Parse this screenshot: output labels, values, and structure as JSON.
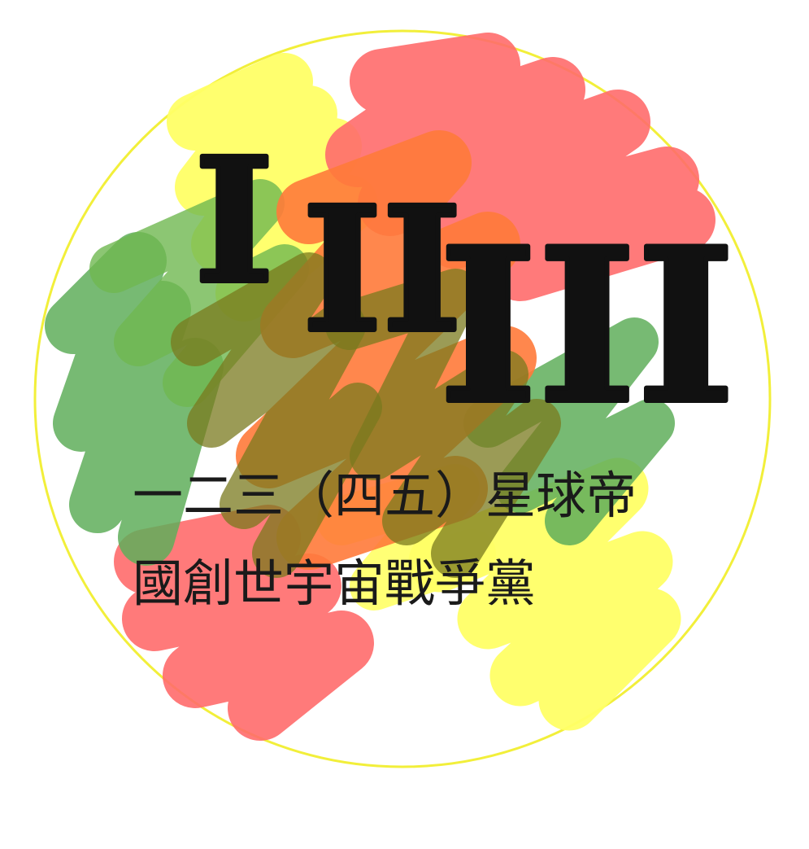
{
  "emblem": {
    "numerals": {
      "one": "I",
      "two": "II",
      "three": "III"
    },
    "caption": {
      "line1": "一二三（四五）星球帝",
      "line2": "國創世宇宙戰爭黨"
    }
  },
  "colors": {
    "ring": "#f2ef3a",
    "yellow": "#ffff66",
    "red": "#ff6b6b",
    "orange": "#ff7a3a",
    "green": "#5fae5a",
    "olive": "#7a7a1e",
    "ink": "#111111"
  },
  "icons": [
    "paint-scribble-icon"
  ]
}
